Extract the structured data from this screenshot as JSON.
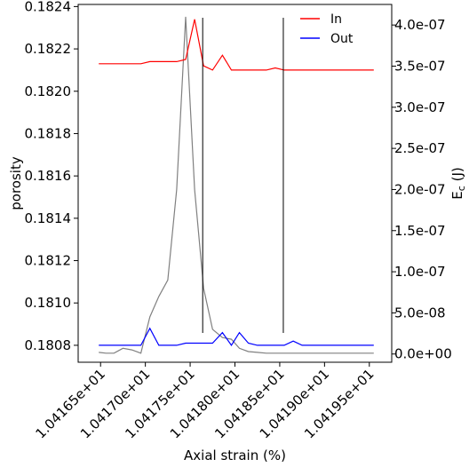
{
  "chart_data": {
    "type": "line",
    "xlabel": "Axial strain (%)",
    "ylabel_left": "porosity",
    "ylabel_right": "E_c (J)",
    "ylabel_right_base": "E",
    "ylabel_right_sub": "c",
    "ylabel_right_unit": " (J)",
    "xlim": [
      10.41625,
      10.41975
    ],
    "ylim_left": [
      0.18072,
      0.18241
    ],
    "ylim_right": [
      -1e-08,
      4.25e-07
    ],
    "x_ticks": [
      10.4165,
      10.417,
      10.4175,
      10.418,
      10.4185,
      10.419,
      10.4195
    ],
    "x_tick_labels": [
      "1.04165e+01",
      "1.04170e+01",
      "1.04175e+01",
      "1.04180e+01",
      "1.04185e+01",
      "1.04190e+01",
      "1.04195e+01"
    ],
    "y_left_ticks": [
      0.1808,
      0.181,
      0.1812,
      0.1814,
      0.1816,
      0.1818,
      0.182,
      0.1822,
      0.1824
    ],
    "y_left_tick_labels": [
      "0.1808",
      "0.1810",
      "0.1812",
      "0.1814",
      "0.1816",
      "0.1818",
      "0.1820",
      "0.1822",
      "0.1824"
    ],
    "y_right_ticks": [
      0,
      5e-08,
      1e-07,
      1.5e-07,
      2e-07,
      2.5e-07,
      3e-07,
      3.5e-07,
      4e-07
    ],
    "y_right_tick_labels": [
      "0.0e+00",
      "5.0e-08",
      "1.0e-07",
      "1.5e-07",
      "2.0e-07",
      "2.5e-07",
      "3.0e-07",
      "3.5e-07",
      "4.0e-07"
    ],
    "vlines": [
      10.41764,
      10.41854
    ],
    "legend": {
      "placement": "top-right",
      "entries": [
        "In",
        "Out"
      ]
    },
    "series": [
      {
        "name": "In",
        "axis": "left",
        "color": "#ff0000",
        "x": [
          10.41648,
          10.41656,
          10.41665,
          10.41675,
          10.41685,
          10.41695,
          10.41705,
          10.41715,
          10.41725,
          10.41735,
          10.41745,
          10.41755,
          10.41765,
          10.41775,
          10.41786,
          10.41796,
          10.41805,
          10.41815,
          10.41825,
          10.41835,
          10.41845,
          10.41855,
          10.41865,
          10.41875,
          10.41885,
          10.41895,
          10.41905,
          10.41915,
          10.41925,
          10.41935,
          10.41945,
          10.41955
        ],
        "y": [
          0.18213,
          0.18213,
          0.18213,
          0.18213,
          0.18213,
          0.18213,
          0.18214,
          0.18214,
          0.18214,
          0.18214,
          0.18215,
          0.18234,
          0.18212,
          0.1821,
          0.18217,
          0.1821,
          0.1821,
          0.1821,
          0.1821,
          0.1821,
          0.18211,
          0.1821,
          0.1821,
          0.1821,
          0.1821,
          0.1821,
          0.1821,
          0.1821,
          0.1821,
          0.1821,
          0.1821,
          0.1821
        ]
      },
      {
        "name": "Out",
        "axis": "left",
        "color": "#0000ff",
        "x": [
          10.41648,
          10.41656,
          10.41665,
          10.41675,
          10.41685,
          10.41695,
          10.41705,
          10.41715,
          10.41725,
          10.41735,
          10.41745,
          10.41755,
          10.41765,
          10.41775,
          10.41786,
          10.41796,
          10.41805,
          10.41815,
          10.41825,
          10.41835,
          10.41845,
          10.41855,
          10.41865,
          10.41875,
          10.41885,
          10.41895,
          10.41905,
          10.41915,
          10.41925,
          10.41935,
          10.41945,
          10.41955
        ],
        "y": [
          0.1808,
          0.1808,
          0.1808,
          0.1808,
          0.1808,
          0.1808,
          0.18088,
          0.1808,
          0.1808,
          0.1808,
          0.18081,
          0.18081,
          0.18081,
          0.18081,
          0.18086,
          0.1808,
          0.18086,
          0.18081,
          0.1808,
          0.1808,
          0.1808,
          0.1808,
          0.18082,
          0.1808,
          0.1808,
          0.1808,
          0.1808,
          0.1808,
          0.1808,
          0.1808,
          0.1808,
          0.1808
        ]
      },
      {
        "name": "",
        "axis": "right",
        "color": "#808080",
        "x": [
          10.41648,
          10.41656,
          10.41665,
          10.41675,
          10.41685,
          10.41695,
          10.41705,
          10.41715,
          10.41725,
          10.41735,
          10.41745,
          10.41755,
          10.41765,
          10.41775,
          10.41786,
          10.41796,
          10.41805,
          10.41815,
          10.41825,
          10.41835,
          10.41845,
          10.41855,
          10.41865,
          10.41875,
          10.41885,
          10.41895,
          10.41905,
          10.41915,
          10.41925,
          10.41935,
          10.41945,
          10.41955
        ],
        "y": [
          2e-09,
          1e-09,
          1e-09,
          7e-09,
          5e-09,
          1e-09,
          4.5e-08,
          7e-08,
          9e-08,
          2e-07,
          4.1e-07,
          2e-07,
          8e-08,
          3e-08,
          2e-08,
          1.8e-08,
          7e-09,
          3e-09,
          2e-09,
          1e-09,
          1e-09,
          1e-09,
          1e-09,
          1e-09,
          1e-09,
          1e-09,
          1e-09,
          1e-09,
          1e-09,
          1e-09,
          1e-09,
          1e-09
        ]
      }
    ]
  }
}
